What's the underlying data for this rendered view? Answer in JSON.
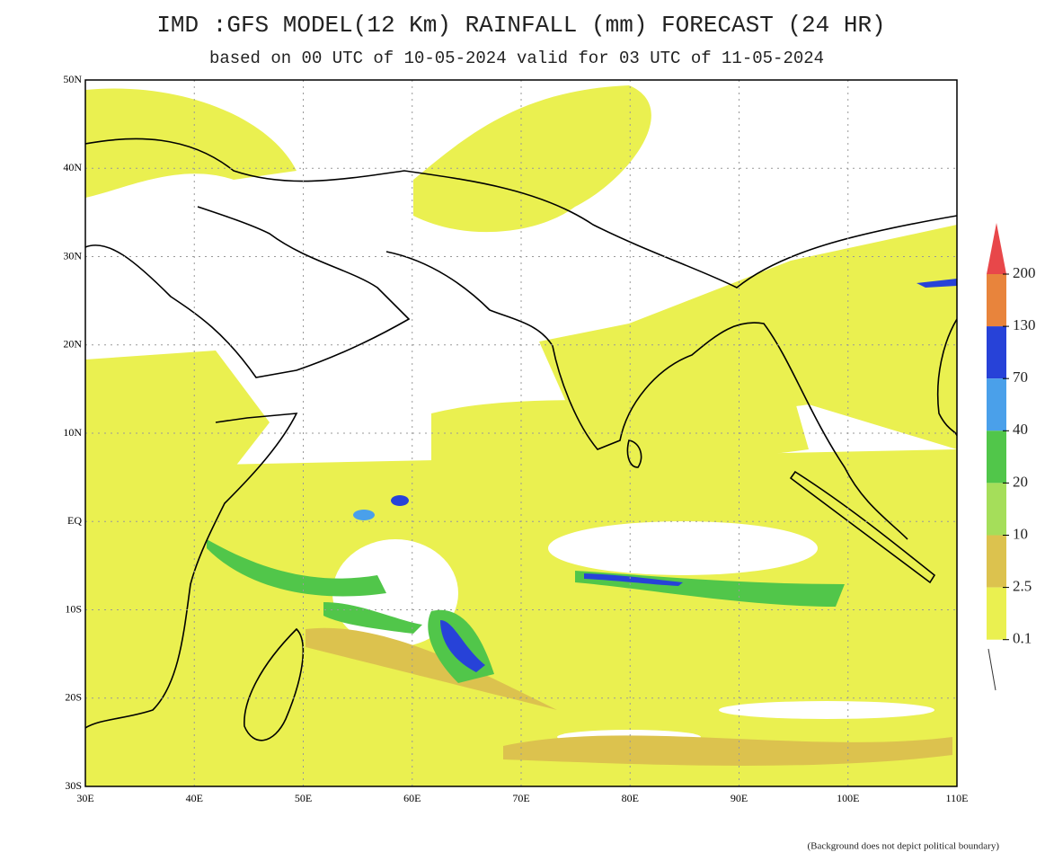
{
  "header": {
    "title": "IMD :GFS MODEL(12 Km) RAINFALL (mm) FORECAST (24 HR)",
    "subtitle": "based on 00 UTC of 10-05-2024 valid for 03 UTC of 11-05-2024"
  },
  "map": {
    "lon_labels": [
      "30E",
      "40E",
      "50E",
      "60E",
      "70E",
      "80E",
      "90E",
      "100E",
      "110E"
    ],
    "lat_labels": [
      "50N",
      "40N",
      "30N",
      "20N",
      "10N",
      "EQ",
      "10S",
      "20S",
      "30S"
    ]
  },
  "legend": {
    "labels": [
      "200",
      "130",
      "70",
      "40",
      "20",
      "10",
      "2.5",
      "0.1"
    ],
    "colors": [
      "#e8474a",
      "#e8843c",
      "#2742d8",
      "#4aa0ea",
      "#51c64a",
      "#a5de5a",
      "#dcc24e",
      "#eaf050"
    ]
  },
  "footnote": "(Background does not depict political boundary)"
}
